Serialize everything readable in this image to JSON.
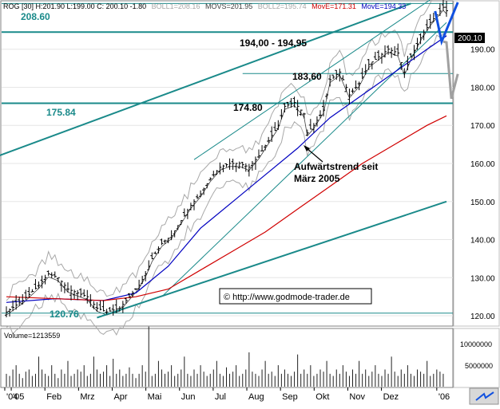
{
  "header": {
    "symbol_info": "ROG [30] H:201.90 L:199.00 C: 200.10 -1.80",
    "boll1": "BOLL1=208.16",
    "movs": "MOVS=201.95",
    "boll2": "BOLL2=195.74",
    "move1": "MovE=171.31",
    "move2": "MovE=194.33"
  },
  "colors": {
    "candles": "#000000",
    "bands": "#a8a8a8",
    "channel_teal": "#1a8a8a",
    "move_short": "#0000c0",
    "move_long": "#d00000",
    "projection_blue": "#1050e0",
    "projection_gray": "#a0a0a0",
    "volume": "#202020",
    "watermark_border": "#000000"
  },
  "chart_data": {
    "type": "candlestick",
    "x_tick_labels": [
      "'04",
      "'05",
      "Feb",
      "Mrz",
      "Apr",
      "Mai",
      "Jun",
      "Jul",
      "Aug",
      "Sep",
      "Okt",
      "Nov",
      "Dez",
      "'06"
    ],
    "y_ticks": [
      120,
      130,
      140,
      150,
      160,
      170,
      180,
      190
    ],
    "ylim": [
      117.5,
      202.5
    ],
    "last_price": "200.10",
    "levels": [
      {
        "value": 208.6,
        "label": "208.60"
      },
      {
        "value": 194.0,
        "label": "194,00 - 194,95"
      },
      {
        "value": 183.6,
        "label": "183,60"
      },
      {
        "value": 174.8,
        "label": "174.80"
      },
      {
        "value": 175.84,
        "label": "175.84"
      },
      {
        "value": 120.76,
        "label": "120.76"
      }
    ],
    "annotation": {
      "line1": "Aufwärtstrend seit",
      "line2": "März 2005"
    },
    "watermark": "© http://www.godmode-trader.de",
    "price_path": [
      [
        0,
        121
      ],
      [
        5,
        124
      ],
      [
        10,
        128
      ],
      [
        13,
        131
      ],
      [
        16,
        130
      ],
      [
        19,
        127
      ],
      [
        22,
        126
      ],
      [
        25,
        125
      ],
      [
        28,
        122
      ],
      [
        31,
        121
      ],
      [
        35,
        122
      ],
      [
        38,
        125
      ],
      [
        41,
        128
      ],
      [
        43,
        131
      ],
      [
        45,
        135
      ],
      [
        48,
        139
      ],
      [
        51,
        141
      ],
      [
        54,
        145
      ],
      [
        57,
        149
      ],
      [
        60,
        152
      ],
      [
        63,
        156
      ],
      [
        66,
        159
      ],
      [
        69,
        160
      ],
      [
        72,
        160
      ],
      [
        75,
        159
      ],
      [
        78,
        162
      ],
      [
        81,
        166
      ],
      [
        84,
        170
      ],
      [
        86,
        175
      ],
      [
        89,
        176
      ],
      [
        92,
        173
      ],
      [
        93,
        168
      ],
      [
        95,
        170
      ],
      [
        98,
        174
      ],
      [
        100,
        182
      ],
      [
        103,
        184
      ],
      [
        106,
        178
      ],
      [
        109,
        181
      ],
      [
        112,
        186
      ],
      [
        115,
        188
      ],
      [
        118,
        190
      ],
      [
        121,
        189
      ],
      [
        123,
        184
      ],
      [
        125,
        188
      ],
      [
        128,
        193
      ],
      [
        131,
        197
      ],
      [
        133,
        199
      ],
      [
        135,
        201
      ],
      [
        136,
        200.1
      ]
    ],
    "move_short_path": [
      [
        0,
        123.5
      ],
      [
        15,
        124.5
      ],
      [
        30,
        124
      ],
      [
        40,
        126
      ],
      [
        50,
        133
      ],
      [
        60,
        143
      ],
      [
        70,
        150
      ],
      [
        80,
        157
      ],
      [
        90,
        164
      ],
      [
        100,
        172
      ],
      [
        110,
        178
      ],
      [
        120,
        184
      ],
      [
        130,
        190
      ],
      [
        136,
        193.5
      ]
    ],
    "move_long_path": [
      [
        0,
        125
      ],
      [
        30,
        124
      ],
      [
        40,
        125
      ],
      [
        50,
        127
      ],
      [
        60,
        132
      ],
      [
        70,
        137
      ],
      [
        80,
        142
      ],
      [
        90,
        148
      ],
      [
        100,
        154
      ],
      [
        110,
        160
      ],
      [
        120,
        165
      ],
      [
        130,
        170
      ],
      [
        136,
        172.5
      ]
    ],
    "volume": {
      "label": "Volume=1213559",
      "ticks": [
        "10000000",
        "5000000"
      ],
      "ylim": [
        0,
        13000000
      ],
      "values": [
        3,
        2.5,
        4,
        5,
        3,
        2,
        3.5,
        4,
        2.5,
        3,
        7,
        4,
        3,
        2.5,
        5,
        3,
        2,
        4,
        3,
        6,
        2.5,
        3,
        4,
        3.5,
        5,
        2.5,
        3,
        7,
        4,
        3,
        3.5,
        5,
        2.5,
        6.5,
        3,
        4,
        2.5,
        3,
        4.5,
        3,
        2,
        3,
        5,
        3.5,
        14,
        2.5,
        3,
        6,
        4,
        3,
        3.5,
        5,
        2.5,
        3,
        4,
        7,
        3,
        2.5,
        4,
        3,
        5,
        3.5,
        2.5,
        3,
        4,
        6,
        3,
        2.5,
        4.5,
        3,
        3.5,
        5,
        2.5,
        3,
        4,
        8,
        3.5,
        3,
        2.5,
        4,
        6,
        3,
        3.5,
        2.5,
        5,
        3,
        4,
        3,
        2.5,
        3.5,
        7.5,
        3,
        4,
        3,
        5,
        2.5,
        3,
        4,
        3.5,
        6,
        3,
        2.5,
        4,
        3,
        5,
        3.5,
        2.5,
        4,
        3,
        6,
        3,
        4,
        2.5,
        3.5,
        5,
        3,
        2.5,
        4,
        3,
        7,
        3.5,
        2.5,
        4,
        3,
        5,
        3,
        2.5,
        4,
        3.5,
        3,
        6,
        2.5,
        3,
        4,
        3.5,
        3
      ]
    }
  }
}
